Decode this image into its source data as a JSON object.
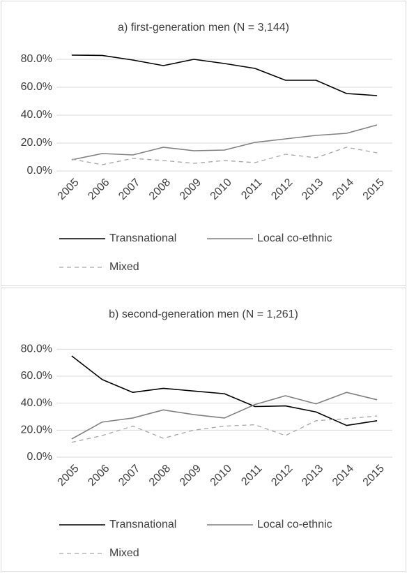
{
  "chart_data": [
    {
      "type": "line",
      "title": "a) first-generation men (N = 3,144)",
      "categories": [
        "2005",
        "2006",
        "2007",
        "2008",
        "2009",
        "2010",
        "2011",
        "2012",
        "2013",
        "2014",
        "2015"
      ],
      "series": [
        {
          "name": "Transnational",
          "color": "#000000",
          "style": "solid",
          "values": [
            83,
            82.8,
            79.5,
            75.5,
            80,
            77,
            73.5,
            65,
            65,
            55.5,
            54
          ]
        },
        {
          "name": "Local co-ethnic",
          "color": "#808080",
          "style": "solid",
          "values": [
            8,
            12.5,
            11.5,
            17,
            14.5,
            15,
            20.5,
            23,
            25.5,
            27,
            33
          ]
        },
        {
          "name": "Mixed",
          "color": "#a6a6a6",
          "style": "dashed",
          "values": [
            8.5,
            4.5,
            9,
            7.5,
            5.5,
            7.5,
            6,
            12,
            9.5,
            17,
            13
          ]
        }
      ],
      "ylim": [
        0,
        90
      ],
      "yticks": [
        {
          "value": 0,
          "label": "0.0%"
        },
        {
          "value": 20,
          "label": "20.0%"
        },
        {
          "value": 40,
          "label": "40.0%"
        },
        {
          "value": 60,
          "label": "60.0%"
        },
        {
          "value": 80,
          "label": "80.0%"
        }
      ],
      "grid": true,
      "legend": "bottom"
    },
    {
      "type": "line",
      "title": "b) second-generation men (N = 1,261)",
      "categories": [
        "2005",
        "2006",
        "2007",
        "2008",
        "2009",
        "2010",
        "2011",
        "2012",
        "2013",
        "2014",
        "2015"
      ],
      "series": [
        {
          "name": "Transnational",
          "color": "#000000",
          "style": "solid",
          "values": [
            75,
            57.5,
            48,
            51,
            49,
            47,
            37.5,
            38,
            33.5,
            23.5,
            27
          ]
        },
        {
          "name": "Local co-ethnic",
          "color": "#808080",
          "style": "solid",
          "values": [
            13.5,
            26,
            29,
            35,
            31.5,
            29,
            39,
            45.5,
            39.5,
            48,
            42.5
          ]
        },
        {
          "name": "Mixed",
          "color": "#a6a6a6",
          "style": "dashed",
          "values": [
            11,
            16,
            23,
            14,
            20,
            23,
            24,
            16,
            27,
            28.5,
            30.5
          ]
        }
      ],
      "ylim": [
        0,
        90
      ],
      "yticks": [
        {
          "value": 0,
          "label": "0.0%"
        },
        {
          "value": 20,
          "label": "20.0%"
        },
        {
          "value": 40,
          "label": "40.0%"
        },
        {
          "value": 60,
          "label": "60.0%"
        },
        {
          "value": 80,
          "label": "80.0%"
        }
      ],
      "grid": true,
      "legend": "bottom"
    }
  ]
}
